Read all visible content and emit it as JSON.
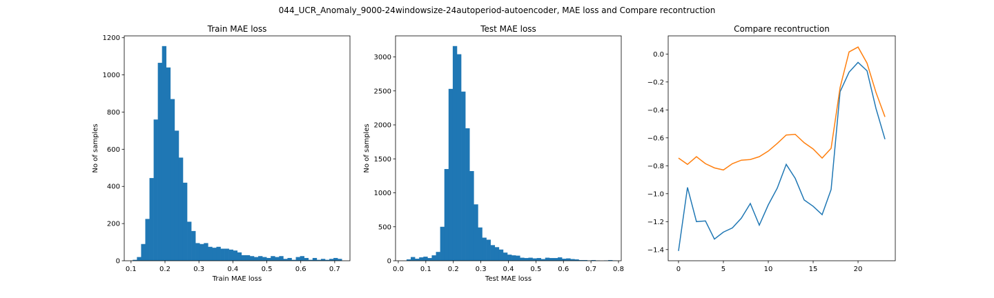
{
  "figure": {
    "suptitle": "044_UCR_Anomaly_9000-24windowsize-24autoperiod-autoencoder, MAE loss and Compare recontruction"
  },
  "colors": {
    "bar": "#1f77b4",
    "series1": "#1f77b4",
    "series2": "#ff7f0e"
  },
  "chart_data": [
    {
      "type": "bar",
      "title": "Train MAE loss",
      "xlabel": "Train MAE loss",
      "ylabel": "No of samples",
      "xlim": [
        0.08,
        0.745
      ],
      "ylim": [
        0,
        1210
      ],
      "xticks": [
        0.1,
        0.2,
        0.3,
        0.4,
        0.5,
        0.6,
        0.7
      ],
      "xtick_labels": [
        "0.1",
        "0.2",
        "0.3",
        "0.4",
        "0.5",
        "0.6",
        "0.7"
      ],
      "yticks": [
        0,
        200,
        400,
        600,
        800,
        1000,
        1200
      ],
      "ytick_labels": [
        "0",
        "200",
        "400",
        "600",
        "800",
        "1000",
        "1200"
      ],
      "bins": {
        "start": 0.105,
        "width": 0.01232
      },
      "values": [
        5,
        20,
        90,
        225,
        445,
        760,
        1065,
        1155,
        1040,
        870,
        700,
        555,
        420,
        210,
        160,
        95,
        90,
        95,
        75,
        70,
        75,
        65,
        65,
        60,
        55,
        45,
        30,
        30,
        25,
        20,
        25,
        20,
        15,
        25,
        20,
        25,
        10,
        15,
        5,
        20,
        25,
        15,
        5,
        15,
        5,
        10,
        5,
        10,
        15,
        10
      ]
    },
    {
      "type": "bar",
      "title": "Test MAE loss",
      "xlabel": "Test MAE loss",
      "ylabel": "No of samples",
      "xlim": [
        -0.01,
        0.81
      ],
      "ylim": [
        0,
        3310
      ],
      "xticks": [
        0.0,
        0.1,
        0.2,
        0.3,
        0.4,
        0.5,
        0.6,
        0.7,
        0.8
      ],
      "xtick_labels": [
        "0.0",
        "0.1",
        "0.2",
        "0.3",
        "0.4",
        "0.5",
        "0.6",
        "0.7",
        "0.8"
      ],
      "yticks": [
        0,
        500,
        1000,
        1500,
        2000,
        2500,
        3000
      ],
      "ytick_labels": [
        "0",
        "500",
        "1000",
        "1500",
        "2000",
        "2500",
        "3000"
      ],
      "bins": {
        "start": 0.03,
        "width": 0.01526
      },
      "values": [
        20,
        55,
        30,
        50,
        60,
        40,
        80,
        130,
        500,
        1350,
        2530,
        3160,
        3040,
        2490,
        1950,
        1320,
        830,
        490,
        340,
        310,
        230,
        200,
        165,
        120,
        90,
        80,
        75,
        45,
        40,
        45,
        35,
        40,
        25,
        45,
        40,
        40,
        50,
        30,
        35,
        25,
        20,
        10,
        10,
        5,
        10,
        5,
        0,
        5,
        10,
        5
      ]
    },
    {
      "type": "line",
      "title": "Compare recontruction",
      "xlabel": "",
      "ylabel": "",
      "xlim": [
        -1.15,
        24.15
      ],
      "ylim": [
        -1.48,
        0.13
      ],
      "xticks": [
        0,
        5,
        10,
        15,
        20
      ],
      "xtick_labels": [
        "0",
        "5",
        "10",
        "15",
        "20"
      ],
      "yticks": [
        0.0,
        -0.2,
        -0.4,
        -0.6,
        -0.8,
        -1.0,
        -1.2,
        -1.4
      ],
      "ytick_labels": [
        "0.0",
        "−0.2",
        "−0.4",
        "−0.6",
        "−0.8",
        "−1.0",
        "−1.2",
        "−1.4"
      ],
      "x": [
        0,
        1,
        2,
        3,
        4,
        5,
        6,
        7,
        8,
        9,
        10,
        11,
        12,
        13,
        14,
        15,
        16,
        17,
        18,
        19,
        20,
        21,
        22,
        23
      ],
      "series": [
        {
          "values": [
            -1.41,
            -0.955,
            -1.2,
            -1.195,
            -1.325,
            -1.275,
            -1.245,
            -1.175,
            -1.07,
            -1.225,
            -1.08,
            -0.96,
            -0.79,
            -0.89,
            -1.045,
            -1.09,
            -1.15,
            -0.97,
            -0.27,
            -0.13,
            -0.06,
            -0.12,
            -0.39,
            -0.61
          ]
        },
        {
          "values": [
            -0.745,
            -0.79,
            -0.735,
            -0.785,
            -0.815,
            -0.83,
            -0.785,
            -0.76,
            -0.755,
            -0.735,
            -0.695,
            -0.64,
            -0.58,
            -0.575,
            -0.635,
            -0.68,
            -0.745,
            -0.675,
            -0.24,
            0.015,
            0.05,
            -0.065,
            -0.275,
            -0.45
          ]
        }
      ]
    }
  ]
}
